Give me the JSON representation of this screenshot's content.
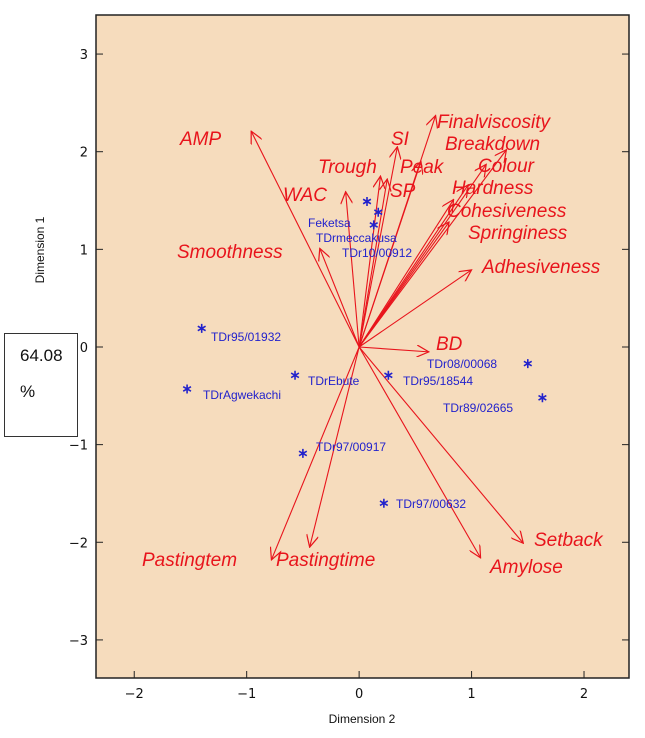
{
  "chart_data": {
    "type": "scatter",
    "subtype": "biplot",
    "xlabel": "Dimension 2",
    "ylabel": "Dimension 1",
    "xlim": [
      -2.34,
      2.4
    ],
    "ylim": [
      -3.39,
      3.4
    ],
    "xticks": [
      -2,
      -1,
      0,
      1,
      2
    ],
    "yticks": [
      -3,
      -2,
      -1,
      0,
      1,
      2,
      3
    ],
    "grid": false,
    "background_color": "#f6dcbd",
    "variable_color": "#e8141c",
    "observation_color": "#2222cc",
    "variables": [
      {
        "name": "AMP",
        "x": -0.96,
        "y": 2.21
      },
      {
        "name": "Finalviscosity",
        "x": 0.68,
        "y": 2.37
      },
      {
        "name": "Breakdown",
        "x": 1.31,
        "y": 2.02
      },
      {
        "name": "SI",
        "x": 0.34,
        "y": 2.05
      },
      {
        "name": "Trough",
        "x": 0.19,
        "y": 1.75
      },
      {
        "name": "Peak",
        "x": 0.55,
        "y": 1.9
      },
      {
        "name": "SP",
        "x": 0.25,
        "y": 1.72
      },
      {
        "name": "WAC",
        "x": -0.12,
        "y": 1.59
      },
      {
        "name": "Colour",
        "x": 1.13,
        "y": 1.87
      },
      {
        "name": "Hardness",
        "x": 0.97,
        "y": 1.66
      },
      {
        "name": "Cohesiveness",
        "x": 0.84,
        "y": 1.51
      },
      {
        "name": "Springiness",
        "x": 0.8,
        "y": 1.28
      },
      {
        "name": "Smoothness",
        "x": -0.35,
        "y": 1.01
      },
      {
        "name": "Adhesiveness",
        "x": 1.0,
        "y": 0.79
      },
      {
        "name": "BD",
        "x": 0.62,
        "y": -0.05
      },
      {
        "name": "Setback",
        "x": 1.46,
        "y": -2.01
      },
      {
        "name": "Amylose",
        "x": 1.08,
        "y": -2.16
      },
      {
        "name": "Pastingtem",
        "x": -0.78,
        "y": -2.18
      },
      {
        "name": "Pastingtime",
        "x": -0.44,
        "y": -2.05
      }
    ],
    "observations": [
      {
        "name": "Feketsa",
        "x": 0.07,
        "y": 1.49
      },
      {
        "name": "TDrmeccakusa",
        "x": 0.17,
        "y": 1.38
      },
      {
        "name": "TDr10/00912",
        "x": 0.13,
        "y": 1.25
      },
      {
        "name": "TDr95/01932",
        "x": -1.4,
        "y": 0.19
      },
      {
        "name": "TDrEbute",
        "x": -0.57,
        "y": -0.29
      },
      {
        "name": "TDr95/18544",
        "x": 0.26,
        "y": -0.29
      },
      {
        "name": "TDrAgwekachi",
        "x": -1.53,
        "y": -0.43
      },
      {
        "name": "TDr08/00068",
        "x": 1.5,
        "y": -0.17
      },
      {
        "name": "TDr89/02665",
        "x": 1.63,
        "y": -0.52
      },
      {
        "name": "TDr97/00917",
        "x": -0.5,
        "y": -1.09
      },
      {
        "name": "TDr97/00632",
        "x": 0.22,
        "y": -1.6
      }
    ]
  },
  "annotation": {
    "value": "64.08",
    "unit": "%"
  }
}
